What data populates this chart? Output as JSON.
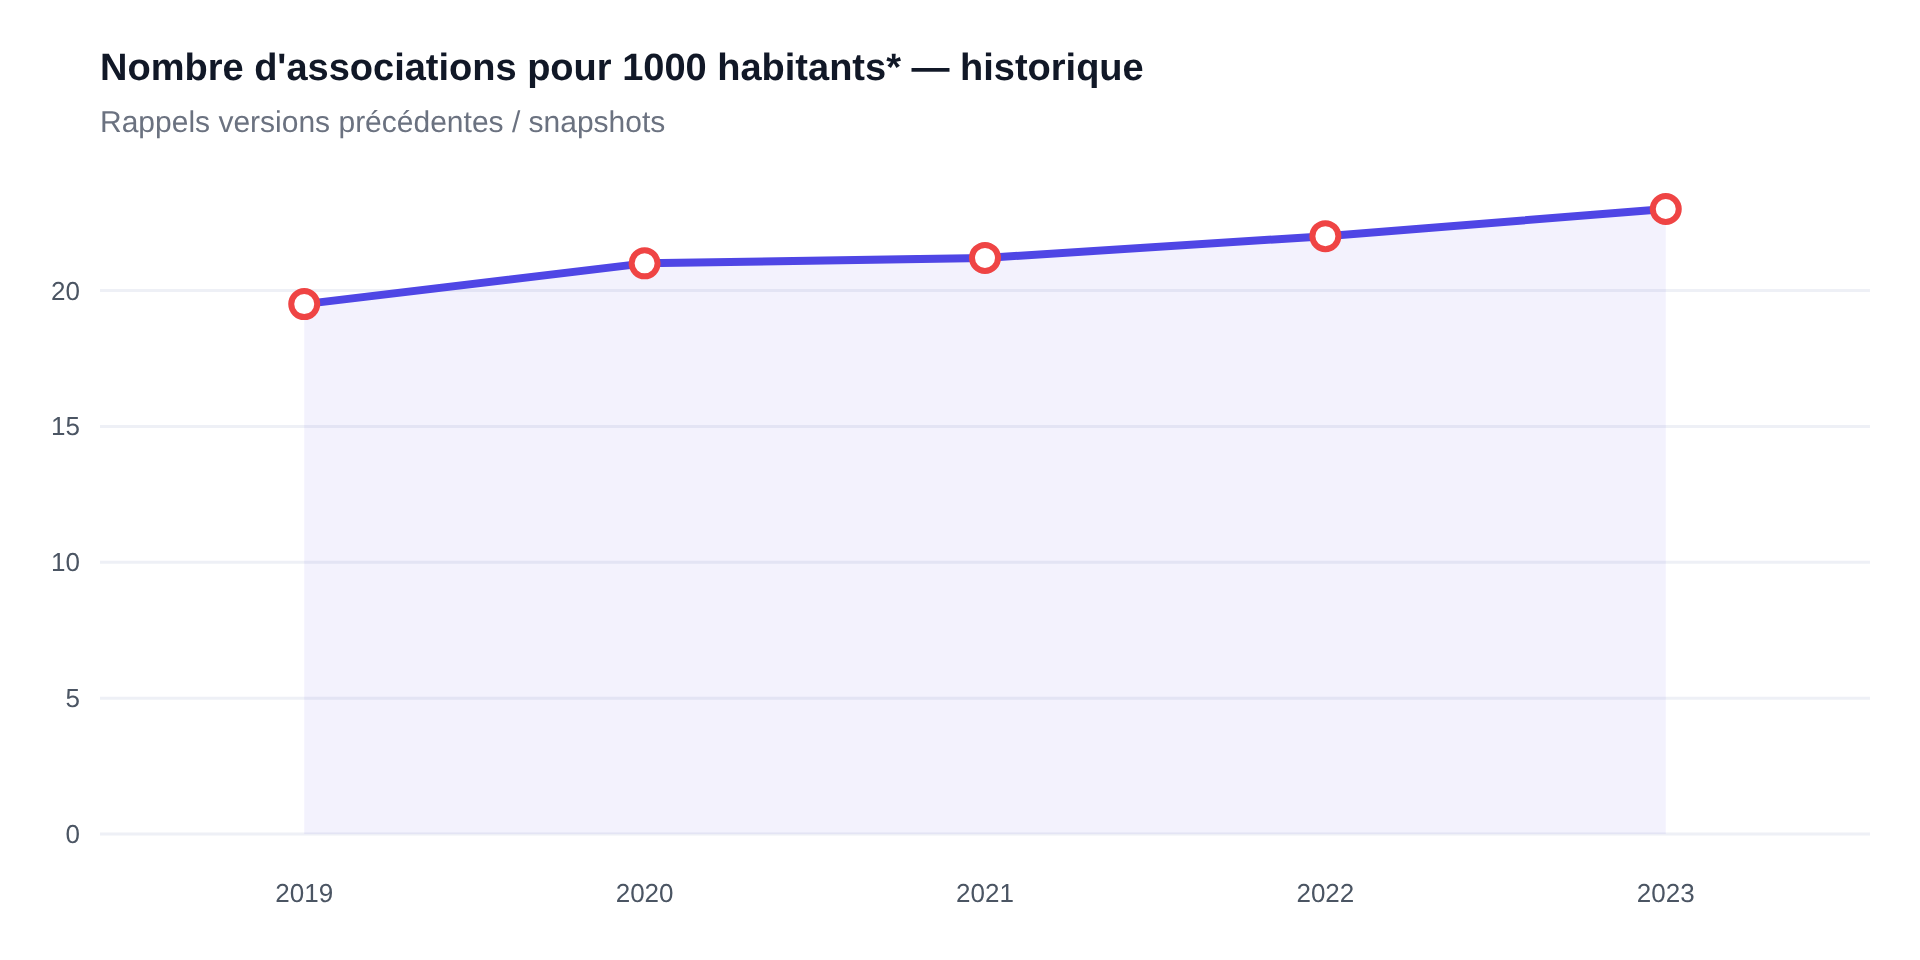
{
  "chart_data": {
    "type": "area",
    "title": "Nombre d'associations pour 1000 habitants* — historique",
    "subtitle": "Rappels versions précédentes / snapshots",
    "categories": [
      "2019",
      "2020",
      "2021",
      "2022",
      "2023"
    ],
    "series": [
      {
        "color": "#4f46e5",
        "colors": [
          "#ef4444",
          "#ef4444",
          "#ef4444",
          "#ef4444",
          "#ef4444"
        ],
        "values": [
          19.5,
          21.0,
          21.2,
          22.0,
          23.0
        ]
      }
    ],
    "ylim": [
      0,
      23
    ],
    "yticks": [
      0,
      5,
      10,
      15,
      20
    ],
    "grid": "y",
    "marker": "circle"
  }
}
